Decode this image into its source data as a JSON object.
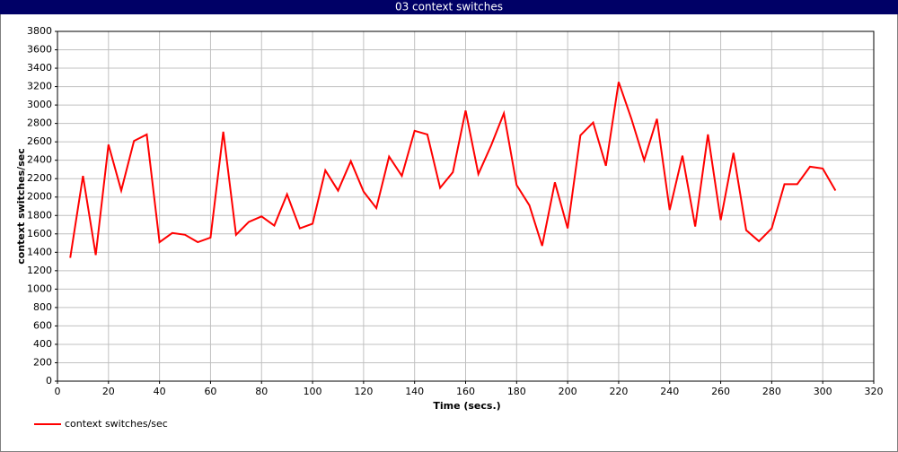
{
  "chart_data": {
    "type": "line",
    "title": "03 context switches",
    "x_label": "Time (secs.)",
    "y_label": "context switches/sec",
    "x": [
      5,
      10,
      15,
      20,
      25,
      30,
      35,
      40,
      45,
      50,
      55,
      60,
      65,
      70,
      75,
      80,
      85,
      90,
      95,
      100,
      105,
      110,
      115,
      120,
      125,
      130,
      135,
      140,
      145,
      150,
      155,
      160,
      165,
      170,
      175,
      180,
      185,
      190,
      195,
      200,
      205,
      210,
      215,
      220,
      225,
      230,
      235,
      240,
      245,
      250,
      255,
      260,
      265,
      270,
      275,
      280,
      285,
      290,
      295,
      300,
      305
    ],
    "series": [
      {
        "name": "context switches/sec",
        "color": "#ff0000",
        "values": [
          1340,
          2230,
          1370,
          2570,
          2070,
          2610,
          2680,
          1510,
          1610,
          1590,
          1510,
          1560,
          2710,
          1590,
          1730,
          1790,
          1690,
          2030,
          1660,
          1710,
          2290,
          2070,
          2390,
          2060,
          1880,
          2440,
          2230,
          2720,
          2680,
          2100,
          2270,
          2940,
          2250,
          2560,
          2910,
          2130,
          1910,
          1470,
          2160,
          1660,
          2670,
          2810,
          2340,
          3250,
          2850,
          2400,
          2850,
          1860,
          2450,
          1680,
          2680,
          1750,
          2480,
          1640,
          1520,
          1660,
          2140,
          2140,
          2330,
          2310,
          2070
        ]
      }
    ],
    "xlim": [
      0,
      320
    ],
    "xticks": [
      0,
      20,
      40,
      60,
      80,
      100,
      120,
      140,
      160,
      180,
      200,
      220,
      240,
      260,
      280,
      300,
      320
    ],
    "ylim": [
      0,
      3800
    ],
    "yticks": [
      0,
      200,
      400,
      600,
      800,
      1000,
      1200,
      1400,
      1600,
      1800,
      2000,
      2200,
      2400,
      2600,
      2800,
      3000,
      3200,
      3400,
      3600,
      3800
    ],
    "grid": true
  }
}
